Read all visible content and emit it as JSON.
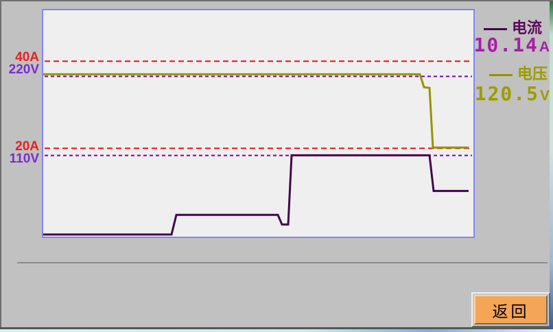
{
  "colors": {
    "background": "#c1c1c1",
    "chart_background": "#efeff0",
    "chart_border": "#8484f4",
    "current_trace": "#42064a",
    "current_label": "#5c085c",
    "current_value": "#a520a5",
    "voltage_trace": "#959300",
    "voltage_label": "#9c9c00",
    "voltage_value": "#9c9c00",
    "amp_limit_line": "#e81010",
    "volt_limit_line": "#7a00aa",
    "amp_label": "#e82020",
    "volt_label": "#7b2ecc",
    "button_face": "#f5a556"
  },
  "axis_labels": [
    {
      "text": "40A",
      "color": "#e82020"
    },
    {
      "text": "220V",
      "color": "#7b2ecc"
    },
    {
      "text": "20A",
      "color": "#e82020"
    },
    {
      "text": "110V",
      "color": "#7b2ecc"
    }
  ],
  "legend": {
    "current_label": "电流",
    "current_value": "10.14",
    "current_unit": "A",
    "voltage_label": "电压",
    "voltage_value": "120.5",
    "voltage_unit": "V"
  },
  "button": {
    "back_label": "返回"
  },
  "chart_data": {
    "type": "line",
    "title": "",
    "xlabel": "",
    "ylabel": "",
    "x_axis": "time (no tick labels shown)",
    "xlim": [
      0,
      631
    ],
    "grid": false,
    "legend_position": "right",
    "series": [
      {
        "name": "电流",
        "unit": "A",
        "color": "#42064a",
        "ylim": [
          -0.6,
          52
        ],
        "points": [
          [
            2,
            0.2
          ],
          [
            189,
            0.2
          ],
          [
            196,
            4.7
          ],
          [
            344,
            4.7
          ],
          [
            350,
            2.5
          ],
          [
            359,
            2.5
          ],
          [
            364,
            18.4
          ],
          [
            565,
            18.4
          ],
          [
            571,
            10.2
          ],
          [
            622,
            10.2
          ]
        ],
        "current_reading": 10.14
      },
      {
        "name": "电压",
        "unit": "V",
        "color": "#959300",
        "ylim": [
          -5,
          314
        ],
        "points": [
          [
            2,
            223
          ],
          [
            551,
            223
          ],
          [
            557,
            205
          ],
          [
            565,
            204
          ],
          [
            570,
            121
          ],
          [
            622,
            121
          ]
        ],
        "current_reading": 120.5
      }
    ],
    "reference_lines": [
      {
        "label": "40A",
        "series": 0,
        "value": 40,
        "color": "#e81010",
        "dash": "8 5"
      },
      {
        "label": "20A",
        "series": 0,
        "value": 20,
        "color": "#e81010",
        "dash": "8 5"
      },
      {
        "label": "220V",
        "series": 1,
        "value": 220,
        "color": "#7a00aa",
        "dash": "5 4"
      },
      {
        "label": "110V",
        "series": 1,
        "value": 110,
        "color": "#7a00aa",
        "dash": "5 4"
      }
    ]
  }
}
